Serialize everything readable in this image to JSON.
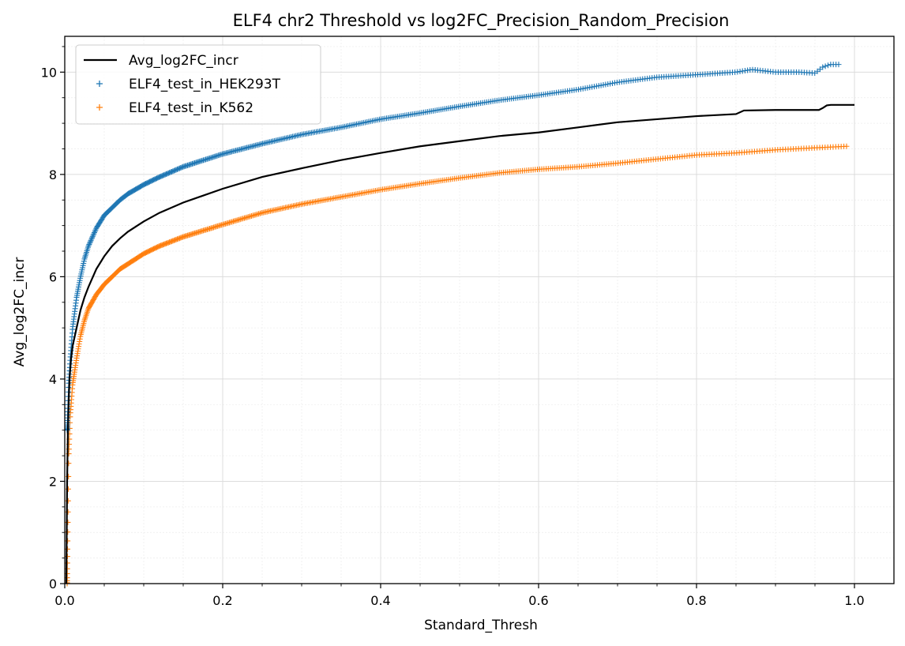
{
  "chart_data": {
    "type": "line",
    "title": "ELF4 chr2 Threshold vs log2FC_Precision_Random_Precision",
    "xlabel": "Standard_Thresh",
    "ylabel": "Avg_log2FC_incr",
    "xlim": [
      0.0,
      1.05
    ],
    "ylim": [
      0,
      10.7
    ],
    "x_ticks": [
      0.0,
      0.2,
      0.4,
      0.6,
      0.8,
      1.0
    ],
    "x_tick_labels": [
      "0.0",
      "0.2",
      "0.4",
      "0.6",
      "0.8",
      "1.0"
    ],
    "y_ticks": [
      0,
      2,
      4,
      6,
      8,
      10
    ],
    "y_tick_labels": [
      "0",
      "2",
      "4",
      "6",
      "8",
      "10"
    ],
    "grid": true,
    "minor_grid": true,
    "legend_position": "top-left",
    "series": [
      {
        "name": "Avg_log2FC_incr",
        "kind": "line",
        "color": "#000000",
        "x": [
          0.002,
          0.003,
          0.004,
          0.005,
          0.006,
          0.008,
          0.01,
          0.015,
          0.02,
          0.025,
          0.03,
          0.04,
          0.05,
          0.06,
          0.07,
          0.08,
          0.1,
          0.12,
          0.15,
          0.2,
          0.25,
          0.3,
          0.35,
          0.4,
          0.45,
          0.5,
          0.55,
          0.6,
          0.65,
          0.7,
          0.75,
          0.8,
          0.85,
          0.86,
          0.9,
          0.95,
          0.955,
          0.96,
          0.965,
          0.97,
          1.0
        ],
        "y": [
          0.0,
          2.0,
          3.0,
          3.6,
          4.0,
          4.4,
          4.65,
          5.0,
          5.35,
          5.6,
          5.8,
          6.15,
          6.4,
          6.6,
          6.75,
          6.88,
          7.08,
          7.25,
          7.45,
          7.72,
          7.95,
          8.12,
          8.28,
          8.42,
          8.55,
          8.65,
          8.75,
          8.82,
          8.92,
          9.02,
          9.08,
          9.14,
          9.18,
          9.25,
          9.26,
          9.26,
          9.26,
          9.3,
          9.35,
          9.36,
          9.36
        ]
      },
      {
        "name": "ELF4_test_in_HEK293T",
        "kind": "scatter",
        "marker": "+",
        "color": "#1f77b4",
        "x": [
          0.003,
          0.005,
          0.007,
          0.01,
          0.015,
          0.02,
          0.025,
          0.03,
          0.04,
          0.05,
          0.06,
          0.07,
          0.08,
          0.1,
          0.12,
          0.15,
          0.2,
          0.25,
          0.3,
          0.35,
          0.4,
          0.45,
          0.5,
          0.55,
          0.6,
          0.65,
          0.7,
          0.75,
          0.8,
          0.85,
          0.87,
          0.9,
          0.93,
          0.95,
          0.96,
          0.97,
          0.98
        ],
        "y": [
          3.0,
          3.9,
          4.4,
          5.0,
          5.6,
          6.0,
          6.35,
          6.6,
          6.95,
          7.2,
          7.35,
          7.5,
          7.62,
          7.8,
          7.95,
          8.15,
          8.4,
          8.6,
          8.78,
          8.92,
          9.08,
          9.2,
          9.33,
          9.45,
          9.55,
          9.66,
          9.8,
          9.9,
          9.95,
          10.0,
          10.05,
          10.0,
          10.0,
          9.98,
          10.1,
          10.15,
          10.15
        ]
      },
      {
        "name": "ELF4_test_in_K562",
        "kind": "scatter",
        "marker": "+",
        "color": "#ff7f0e",
        "x": [
          0.003,
          0.005,
          0.007,
          0.01,
          0.015,
          0.02,
          0.025,
          0.03,
          0.04,
          0.05,
          0.06,
          0.07,
          0.08,
          0.1,
          0.12,
          0.15,
          0.2,
          0.25,
          0.3,
          0.35,
          0.4,
          0.45,
          0.5,
          0.55,
          0.6,
          0.65,
          0.7,
          0.75,
          0.8,
          0.85,
          0.9,
          0.95,
          0.99
        ],
        "y": [
          0.0,
          2.5,
          3.3,
          3.9,
          4.4,
          4.85,
          5.15,
          5.38,
          5.65,
          5.85,
          6.0,
          6.15,
          6.25,
          6.45,
          6.6,
          6.78,
          7.02,
          7.25,
          7.42,
          7.56,
          7.7,
          7.82,
          7.93,
          8.03,
          8.1,
          8.15,
          8.22,
          8.3,
          8.38,
          8.42,
          8.48,
          8.52,
          8.55
        ]
      }
    ]
  }
}
